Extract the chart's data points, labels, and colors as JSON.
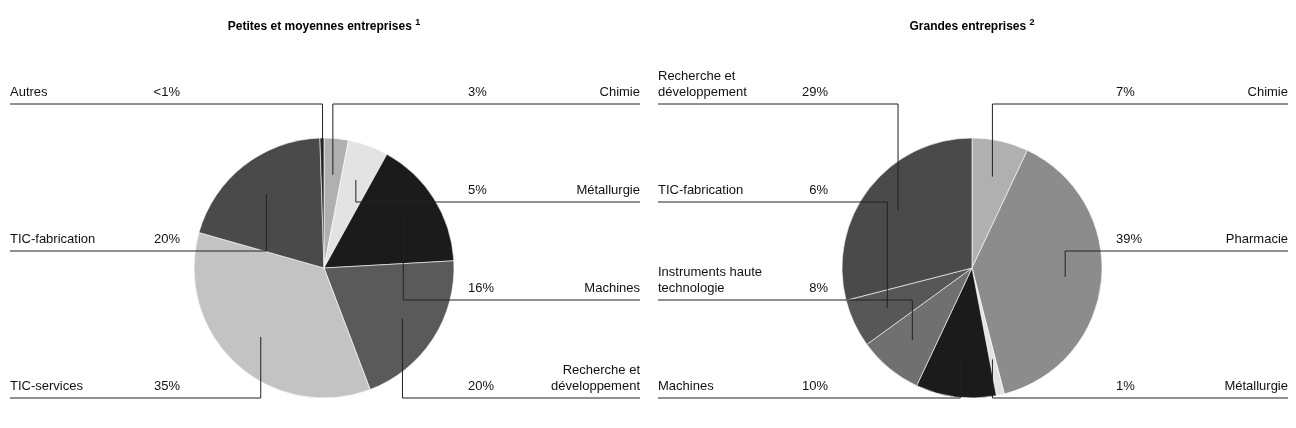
{
  "chart_data": [
    {
      "type": "pie",
      "title": "Petites et moyennes entreprises $^{1}$",
      "categories": [
        "Chimie",
        "Métallurgie",
        "Machines",
        "Recherche et développement",
        "TIC-services",
        "TIC-fabrication",
        "Autres"
      ],
      "values": [
        3,
        5,
        16,
        20,
        35,
        20,
        0.5
      ],
      "colors": [
        "#b0b0b0",
        "#e3e3e3",
        "#1b1b1b",
        "#5a5a5a",
        "#c3c3c3",
        "#4a4a4a",
        "#2b2b2b"
      ],
      "value_labels": [
        "3%",
        "5%",
        "16%",
        "20%",
        "35%",
        "20%",
        "<1%"
      ]
    },
    {
      "type": "pie",
      "title": "Grandes entreprises $^{2}$",
      "categories": [
        "Chimie",
        "Pharmacie",
        "Métallurgie",
        "Machines",
        "Instruments haute technologie",
        "TIC-fabrication",
        "Recherche et développement"
      ],
      "values": [
        7,
        39,
        1,
        10,
        8,
        6,
        29
      ],
      "colors": [
        "#b0b0b0",
        "#8c8c8c",
        "#e3e3e3",
        "#1b1b1b",
        "#707070",
        "#575757",
        "#4a4a4a"
      ],
      "value_labels": [
        "7%",
        "39%",
        "1%",
        "10%",
        "8%",
        "6%",
        "29%"
      ]
    }
  ]
}
